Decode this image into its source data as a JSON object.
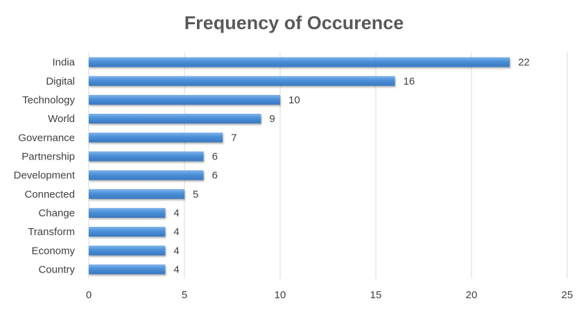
{
  "chart_data": {
    "type": "bar",
    "orientation": "horizontal",
    "title": "Frequency of Occurence",
    "categories": [
      "India",
      "Digital",
      "Technology",
      "World",
      "Governance",
      "Partnership",
      "Development",
      "Connected",
      "Change",
      "Transform",
      "Economy",
      "Country"
    ],
    "values": [
      22,
      16,
      10,
      9,
      7,
      6,
      6,
      5,
      4,
      4,
      4,
      4
    ],
    "xlim": [
      0,
      25
    ],
    "xticks": [
      0,
      5,
      10,
      15,
      20,
      25
    ],
    "grid": "vertical",
    "legend": "none",
    "bar_color": "#4a8fd8",
    "data_labels": true
  }
}
